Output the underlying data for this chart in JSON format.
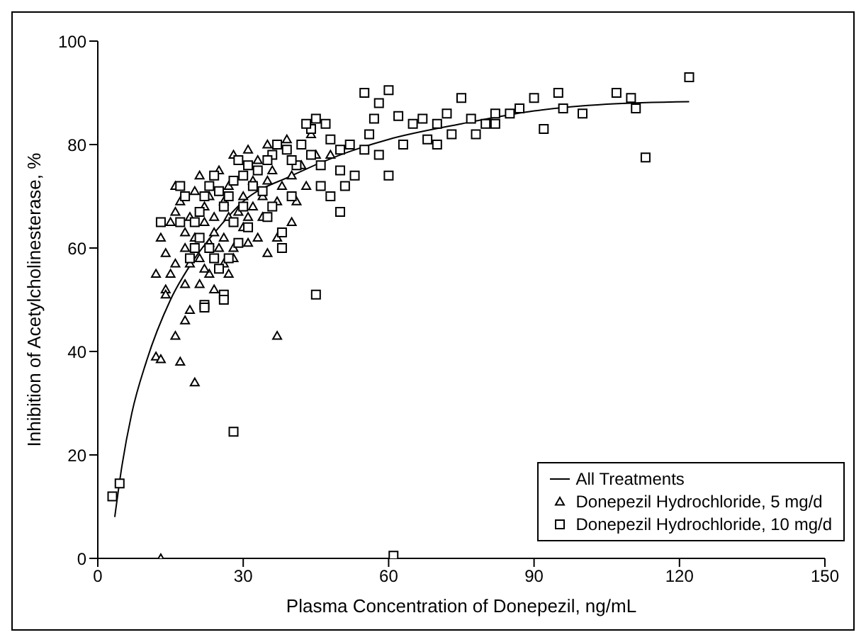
{
  "chart_data": {
    "type": "scatter",
    "xlabel": "Plasma Concentration of Donepezil, ng/mL",
    "ylabel": "Inhibition of Acetylcholinesterase, %",
    "xlim": [
      0,
      150
    ],
    "xticks": [
      0,
      30,
      60,
      90,
      120,
      150
    ],
    "ylim": [
      0,
      100
    ],
    "yticks": [
      0,
      20,
      40,
      60,
      80,
      100
    ],
    "legend": "bottom right",
    "series": [
      {
        "name": "All Treatments",
        "type": "line",
        "color": "#000000",
        "marker": "none",
        "line_style": "solid",
        "x": [
          3.5,
          5,
          7,
          10,
          15,
          20,
          25,
          30,
          40,
          50,
          60,
          75,
          90,
          105,
          122
        ],
        "values": [
          8,
          18,
          28,
          38,
          50,
          58,
          64,
          69,
          74,
          78,
          81,
          84,
          86.5,
          87.8,
          88.3
        ]
      },
      {
        "name": "Donepezil Hydrochloride, 5 mg/d",
        "color": "#000000",
        "marker": "triangle",
        "x": [
          13,
          12,
          13,
          17,
          20,
          16,
          18,
          19,
          37,
          14,
          14,
          15,
          16,
          12,
          13,
          14,
          15,
          16,
          16,
          17,
          18,
          18,
          19,
          20,
          20,
          21,
          21,
          22,
          22,
          23,
          23,
          23,
          24,
          24,
          25,
          25,
          26,
          26,
          26,
          27,
          27,
          28,
          28,
          29,
          30,
          30,
          31,
          31,
          32,
          32,
          33,
          33,
          34,
          34,
          35,
          35,
          36,
          37,
          37,
          38,
          39,
          40,
          40,
          41,
          42,
          44,
          45,
          21,
          22,
          24,
          18,
          27,
          43,
          48,
          35,
          28,
          19,
          31
        ],
        "values": [
          0,
          39,
          38.5,
          38,
          34,
          43,
          46,
          48,
          43,
          52,
          51,
          55,
          57,
          55,
          62,
          59,
          65,
          67,
          72,
          69,
          63,
          60,
          66,
          71,
          62,
          58,
          74,
          65,
          68,
          55,
          61,
          70,
          66,
          63,
          60,
          75,
          62,
          69,
          57,
          66,
          72,
          60,
          78,
          67,
          64,
          70,
          79,
          66,
          73,
          68,
          62,
          77,
          70,
          66,
          73,
          80,
          75,
          62,
          69,
          72,
          81,
          74,
          65,
          69,
          76,
          82,
          78,
          53,
          56,
          52,
          53,
          55,
          72,
          78,
          59,
          58,
          57,
          61
        ]
      },
      {
        "name": "Donepezil Hydrochloride, 10 mg/d",
        "color": "#000000",
        "marker": "square",
        "x": [
          3,
          4.5,
          13,
          17,
          22,
          22,
          26,
          26,
          28,
          45,
          61,
          113,
          122,
          95,
          107,
          110,
          111,
          90,
          87,
          85,
          80,
          82,
          77,
          75,
          72,
          70,
          67,
          65,
          62,
          60,
          55,
          58,
          57,
          56,
          55,
          60,
          58,
          50,
          48,
          47,
          45,
          44,
          43,
          42,
          41,
          44,
          46,
          50,
          51,
          48,
          40,
          39,
          37,
          36,
          35,
          33,
          32,
          34,
          31,
          30,
          29,
          28,
          27,
          26,
          25,
          24,
          23,
          22,
          21,
          20,
          21,
          23,
          24,
          25,
          27,
          29,
          31,
          35,
          36,
          38,
          38,
          40,
          30,
          20,
          19,
          28,
          50,
          53,
          46,
          52,
          63,
          68,
          70,
          73,
          78,
          82,
          96,
          92,
          100,
          17,
          18
        ],
        "values": [
          12,
          14.5,
          65,
          65,
          49,
          48.5,
          51,
          50,
          24.5,
          51,
          0.5,
          77.5,
          93,
          90,
          90,
          89,
          87,
          89,
          87,
          86,
          84,
          86,
          85,
          89,
          86,
          84,
          85,
          84,
          85.5,
          90.5,
          90,
          88,
          85,
          82,
          79,
          74,
          78,
          79,
          81,
          84,
          85,
          83,
          84,
          80,
          76,
          78,
          76,
          75,
          72,
          70,
          77,
          79,
          80,
          78,
          77,
          75,
          72,
          71,
          76,
          74,
          77,
          73,
          70,
          68,
          71,
          74,
          72,
          70,
          67,
          65,
          62,
          60,
          58,
          56,
          58,
          61,
          64,
          66,
          68,
          63,
          60,
          70,
          68,
          60,
          58,
          65,
          67,
          74,
          72,
          80,
          80,
          81,
          80,
          82,
          82,
          84,
          87,
          83,
          86,
          72,
          70
        ]
      }
    ]
  }
}
